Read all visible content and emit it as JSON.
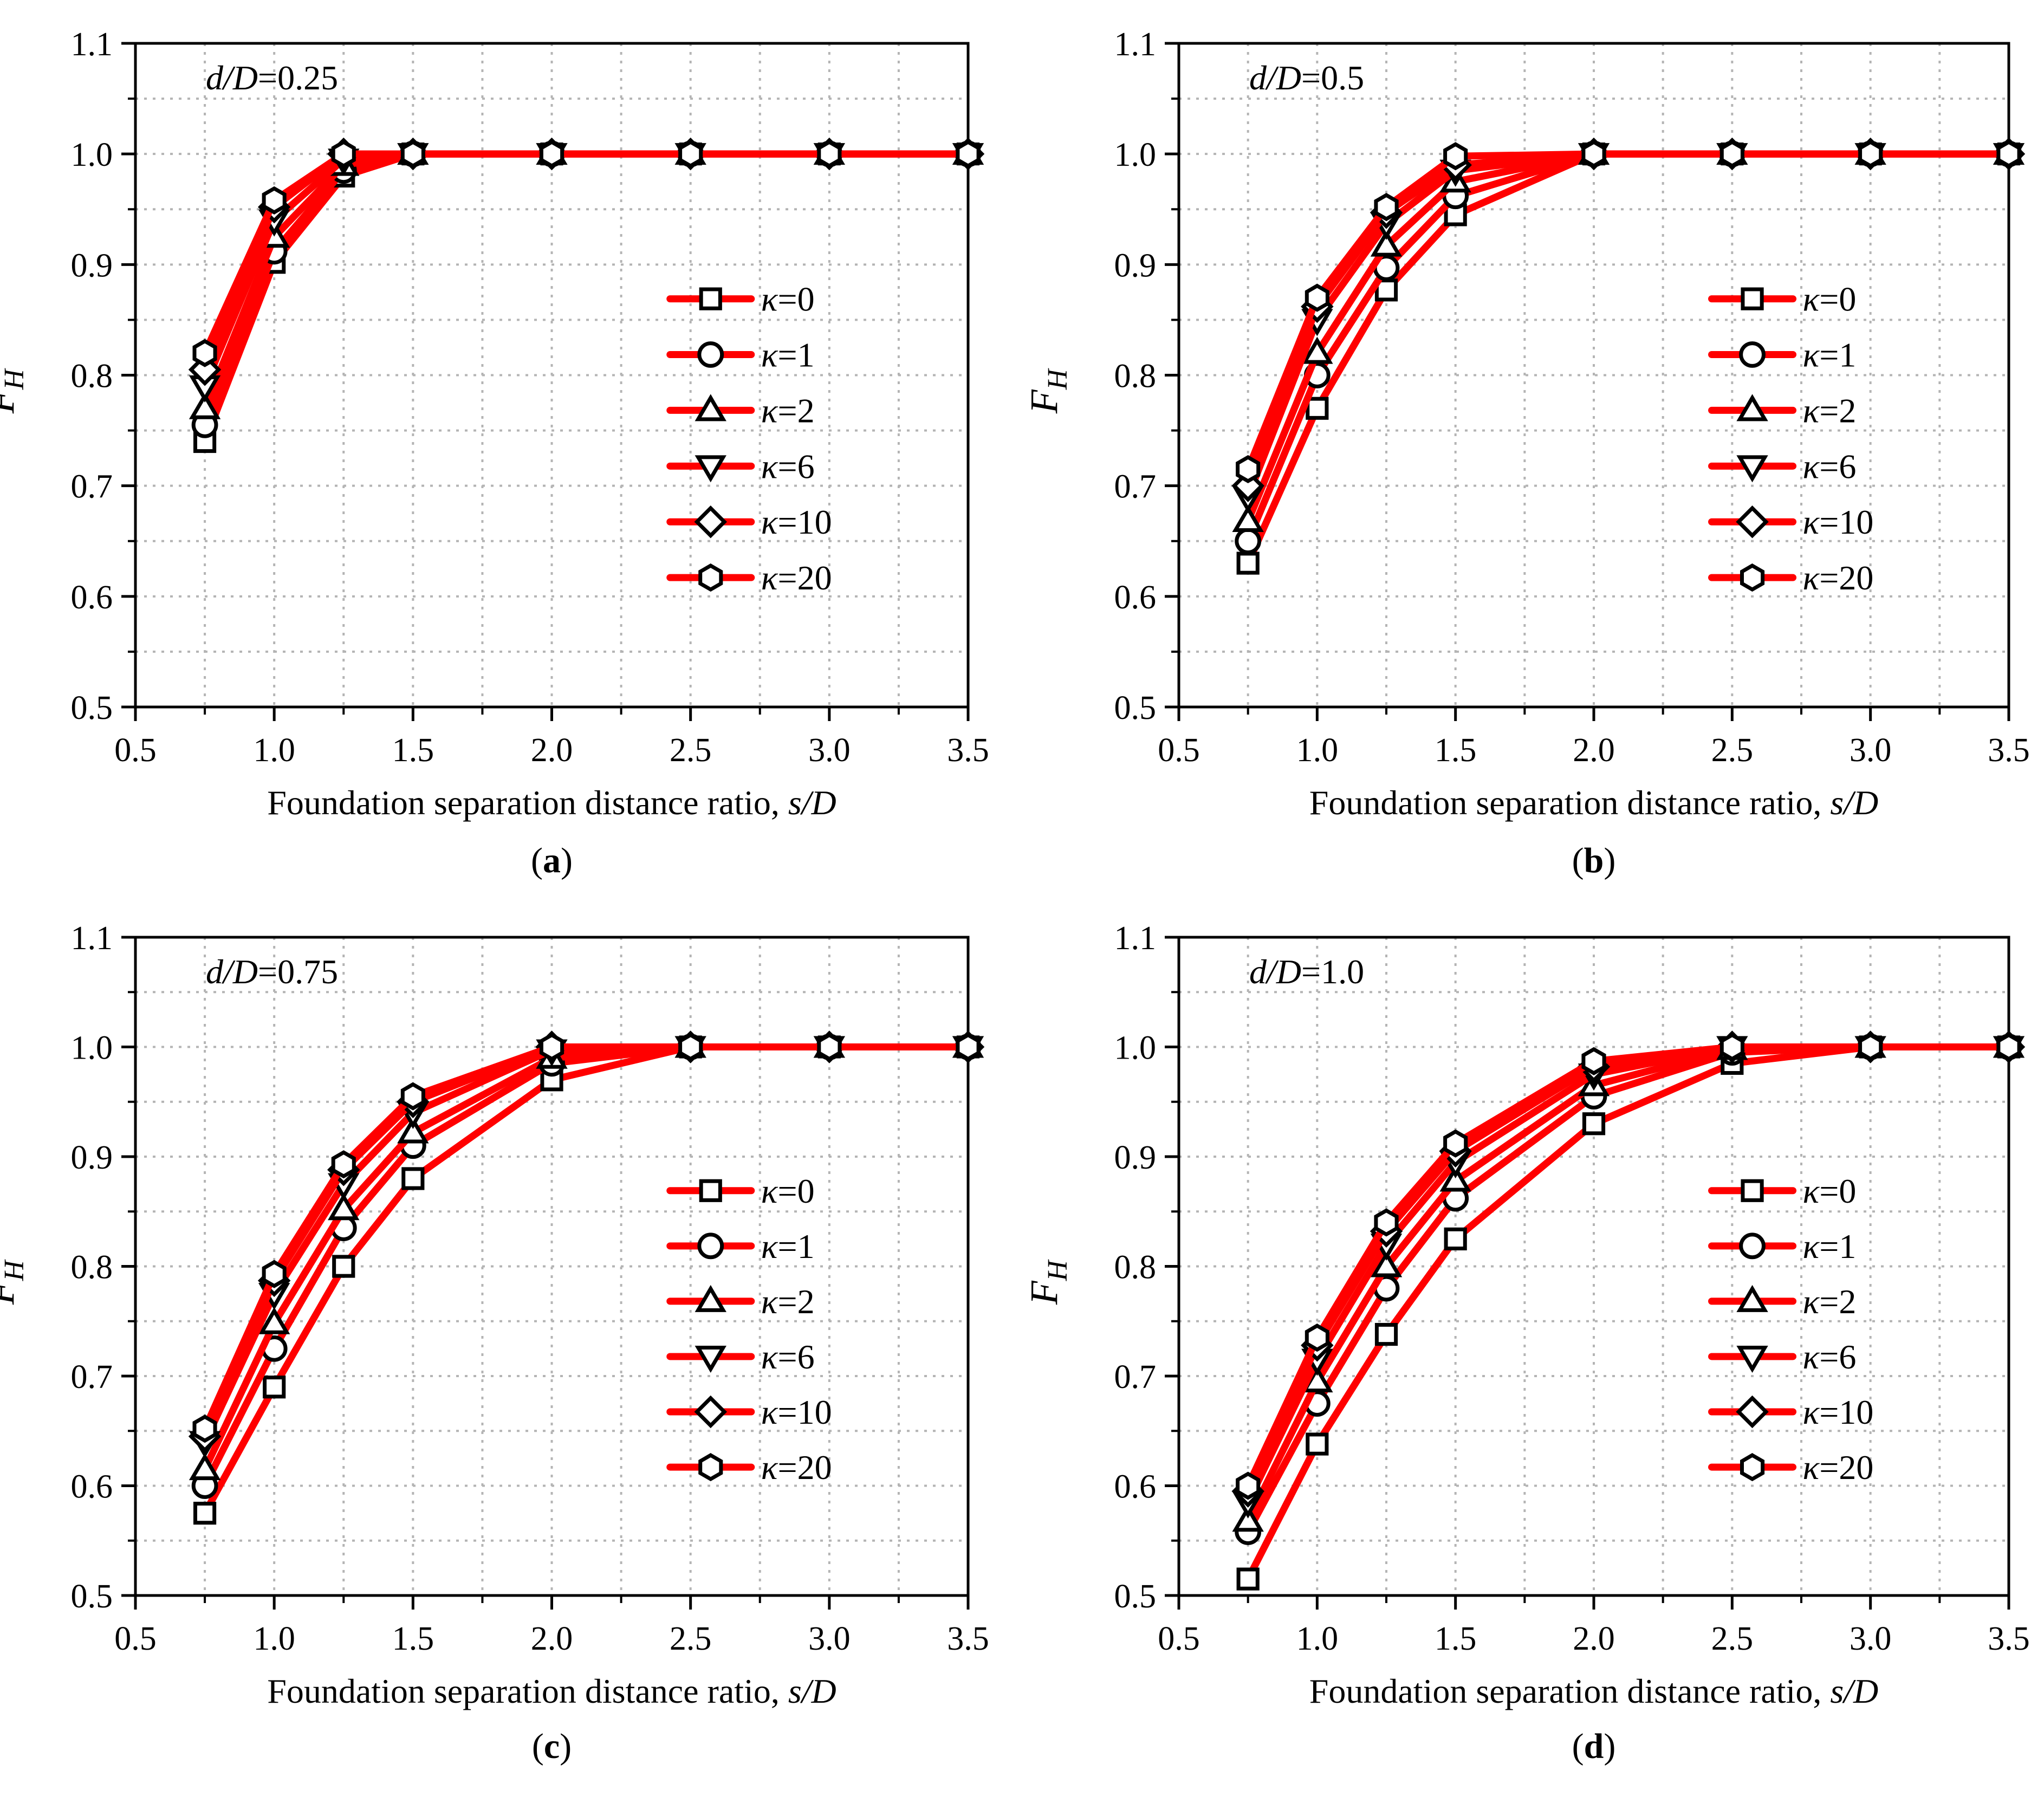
{
  "figure": {
    "panel_label_parens": [
      "(",
      ")"
    ]
  },
  "colors": {
    "series_line": "#ff0000",
    "marker_stroke": "#000000",
    "marker_fill": "#ffffff",
    "grid": "#b4b4b4",
    "axis": "#000000"
  },
  "chart_data": [
    {
      "type": "line",
      "panel_label": "a",
      "annotation": {
        "var": "d/D",
        "value": "=0.25"
      },
      "xlabel": {
        "text": "Foundation separation distance ratio, ",
        "var": "s/D"
      },
      "ylabel": {
        "main": "F",
        "sub": "H"
      },
      "xlim": [
        0.5,
        3.5
      ],
      "ylim": [
        0.5,
        1.1
      ],
      "xticks": [
        "0.5",
        "1.0",
        "1.5",
        "2.0",
        "2.5",
        "3.0",
        "3.5"
      ],
      "yticks": [
        "0.5",
        "0.6",
        "0.7",
        "0.8",
        "0.9",
        "1.0",
        "1.1"
      ],
      "grid": true,
      "legend_position": "center-right",
      "x": [
        0.75,
        1.0,
        1.25,
        1.5,
        2.0,
        2.5,
        3.0,
        3.5
      ],
      "series": [
        {
          "name": "κ=0",
          "kappa_sym": "κ",
          "kappa_val": "=0",
          "marker": "square",
          "values": [
            0.74,
            0.902,
            0.98,
            1.0,
            1.0,
            1.0,
            1.0,
            1.0
          ]
        },
        {
          "name": "κ=1",
          "kappa_sym": "κ",
          "kappa_val": "=1",
          "marker": "circle",
          "values": [
            0.755,
            0.912,
            0.985,
            1.0,
            1.0,
            1.0,
            1.0,
            1.0
          ]
        },
        {
          "name": "κ=2",
          "kappa_sym": "κ",
          "kappa_val": "=2",
          "marker": "triangle-up",
          "values": [
            0.77,
            0.925,
            0.99,
            1.0,
            1.0,
            1.0,
            1.0,
            1.0
          ]
        },
        {
          "name": "κ=6",
          "kappa_sym": "κ",
          "kappa_val": "=6",
          "marker": "triangle-down",
          "values": [
            0.79,
            0.94,
            0.995,
            1.0,
            1.0,
            1.0,
            1.0,
            1.0
          ]
        },
        {
          "name": "κ=10",
          "kappa_sym": "κ",
          "kappa_val": "=10",
          "marker": "diamond",
          "values": [
            0.805,
            0.952,
            1.0,
            1.0,
            1.0,
            1.0,
            1.0,
            1.0
          ]
        },
        {
          "name": "κ=20",
          "kappa_sym": "κ",
          "kappa_val": "=20",
          "marker": "hexagon",
          "values": [
            0.82,
            0.958,
            1.0,
            1.0,
            1.0,
            1.0,
            1.0,
            1.0
          ]
        }
      ]
    },
    {
      "type": "line",
      "panel_label": "b",
      "annotation": {
        "var": "d/D",
        "value": "=0.5"
      },
      "xlabel": {
        "text": "Foundation separation distance ratio, ",
        "var": "s/D"
      },
      "ylabel": {
        "main": "F",
        "sub": "H"
      },
      "xlim": [
        0.5,
        3.5
      ],
      "ylim": [
        0.5,
        1.1
      ],
      "xticks": [
        "0.5",
        "1.0",
        "1.5",
        "2.0",
        "2.5",
        "3.0",
        "3.5"
      ],
      "yticks": [
        "0.5",
        "0.6",
        "0.7",
        "0.8",
        "0.9",
        "1.0",
        "1.1"
      ],
      "grid": true,
      "legend_position": "center-right",
      "x": [
        0.75,
        1.0,
        1.25,
        1.5,
        2.0,
        2.5,
        3.0,
        3.5
      ],
      "series": [
        {
          "name": "κ=0",
          "kappa_sym": "κ",
          "kappa_val": "=0",
          "marker": "square",
          "values": [
            0.63,
            0.77,
            0.877,
            0.945,
            1.0,
            1.0,
            1.0,
            1.0
          ]
        },
        {
          "name": "κ=1",
          "kappa_sym": "κ",
          "kappa_val": "=1",
          "marker": "circle",
          "values": [
            0.65,
            0.8,
            0.897,
            0.962,
            1.0,
            1.0,
            1.0,
            1.0
          ]
        },
        {
          "name": "κ=2",
          "kappa_sym": "κ",
          "kappa_val": "=2",
          "marker": "triangle-up",
          "values": [
            0.668,
            0.82,
            0.917,
            0.975,
            1.0,
            1.0,
            1.0,
            1.0
          ]
        },
        {
          "name": "κ=6",
          "kappa_sym": "κ",
          "kappa_val": "=6",
          "marker": "triangle-down",
          "values": [
            0.69,
            0.85,
            0.937,
            0.985,
            1.0,
            1.0,
            1.0,
            1.0
          ]
        },
        {
          "name": "κ=10",
          "kappa_sym": "κ",
          "kappa_val": "=10",
          "marker": "diamond",
          "values": [
            0.7,
            0.862,
            0.947,
            0.99,
            1.0,
            1.0,
            1.0,
            1.0
          ]
        },
        {
          "name": "κ=20",
          "kappa_sym": "κ",
          "kappa_val": "=20",
          "marker": "hexagon",
          "values": [
            0.715,
            0.87,
            0.952,
            0.998,
            1.0,
            1.0,
            1.0,
            1.0
          ]
        }
      ]
    },
    {
      "type": "line",
      "panel_label": "c",
      "annotation": {
        "var": "d/D",
        "value": "=0.75"
      },
      "xlabel": {
        "text": "Foundation separation distance ratio, ",
        "var": "s/D"
      },
      "ylabel": {
        "main": "F",
        "sub": "H"
      },
      "xlim": [
        0.5,
        3.5
      ],
      "ylim": [
        0.5,
        1.1
      ],
      "xticks": [
        "0.5",
        "1.0",
        "1.5",
        "2.0",
        "2.5",
        "3.0",
        "3.5"
      ],
      "yticks": [
        "0.5",
        "0.6",
        "0.7",
        "0.8",
        "0.9",
        "1.0",
        "1.1"
      ],
      "grid": true,
      "legend_position": "center-right",
      "x": [
        0.75,
        1.0,
        1.25,
        1.5,
        2.0,
        2.5,
        3.0,
        3.5
      ],
      "series": [
        {
          "name": "κ=0",
          "kappa_sym": "κ",
          "kappa_val": "=0",
          "marker": "square",
          "values": [
            0.575,
            0.69,
            0.8,
            0.88,
            0.97,
            1.0,
            1.0,
            1.0
          ]
        },
        {
          "name": "κ=1",
          "kappa_sym": "κ",
          "kappa_val": "=1",
          "marker": "circle",
          "values": [
            0.6,
            0.725,
            0.835,
            0.91,
            0.985,
            1.0,
            1.0,
            1.0
          ]
        },
        {
          "name": "κ=2",
          "kappa_sym": "κ",
          "kappa_val": "=2",
          "marker": "triangle-up",
          "values": [
            0.615,
            0.748,
            0.852,
            0.922,
            0.99,
            1.0,
            1.0,
            1.0
          ]
        },
        {
          "name": "κ=6",
          "kappa_sym": "κ",
          "kappa_val": "=6",
          "marker": "triangle-down",
          "values": [
            0.64,
            0.775,
            0.875,
            0.94,
            0.997,
            1.0,
            1.0,
            1.0
          ]
        },
        {
          "name": "κ=10",
          "kappa_sym": "κ",
          "kappa_val": "=10",
          "marker": "diamond",
          "values": [
            0.645,
            0.787,
            0.888,
            0.95,
            1.0,
            1.0,
            1.0,
            1.0
          ]
        },
        {
          "name": "κ=20",
          "kappa_sym": "κ",
          "kappa_val": "=20",
          "marker": "hexagon",
          "values": [
            0.652,
            0.793,
            0.893,
            0.955,
            1.0,
            1.0,
            1.0,
            1.0
          ]
        }
      ]
    },
    {
      "type": "line",
      "panel_label": "d",
      "annotation": {
        "var": "d/D",
        "value": "=1.0"
      },
      "xlabel": {
        "text": "Foundation separation distance ratio, ",
        "var": "s/D"
      },
      "ylabel": {
        "main": "F",
        "sub": "H"
      },
      "xlim": [
        0.5,
        3.5
      ],
      "ylim": [
        0.5,
        1.1
      ],
      "xticks": [
        "0.5",
        "1.0",
        "1.5",
        "2.0",
        "2.5",
        "3.0",
        "3.5"
      ],
      "yticks": [
        "0.5",
        "0.6",
        "0.7",
        "0.8",
        "0.9",
        "1.0",
        "1.1"
      ],
      "grid": true,
      "legend_position": "center-right",
      "x": [
        0.75,
        1.0,
        1.25,
        1.5,
        2.0,
        2.5,
        3.0,
        3.5
      ],
      "series": [
        {
          "name": "κ=0",
          "kappa_sym": "κ",
          "kappa_val": "=0",
          "marker": "square",
          "values": [
            0.515,
            0.638,
            0.738,
            0.825,
            0.93,
            0.985,
            1.0,
            1.0
          ]
        },
        {
          "name": "κ=1",
          "kappa_sym": "κ",
          "kappa_val": "=1",
          "marker": "circle",
          "values": [
            0.558,
            0.675,
            0.78,
            0.862,
            0.955,
            0.995,
            1.0,
            1.0
          ]
        },
        {
          "name": "κ=2",
          "kappa_sym": "κ",
          "kappa_val": "=2",
          "marker": "triangle-up",
          "values": [
            0.568,
            0.695,
            0.8,
            0.878,
            0.965,
            0.998,
            1.0,
            1.0
          ]
        },
        {
          "name": "κ=6",
          "kappa_sym": "κ",
          "kappa_val": "=6",
          "marker": "triangle-down",
          "values": [
            0.585,
            0.715,
            0.82,
            0.895,
            0.975,
            1.0,
            1.0,
            1.0
          ]
        },
        {
          "name": "κ=10",
          "kappa_sym": "κ",
          "kappa_val": "=10",
          "marker": "diamond",
          "values": [
            0.595,
            0.728,
            0.832,
            0.905,
            0.982,
            1.0,
            1.0,
            1.0
          ]
        },
        {
          "name": "κ=20",
          "kappa_sym": "κ",
          "kappa_val": "=20",
          "marker": "hexagon",
          "values": [
            0.6,
            0.735,
            0.84,
            0.912,
            0.987,
            1.0,
            1.0,
            1.0
          ]
        }
      ]
    }
  ]
}
